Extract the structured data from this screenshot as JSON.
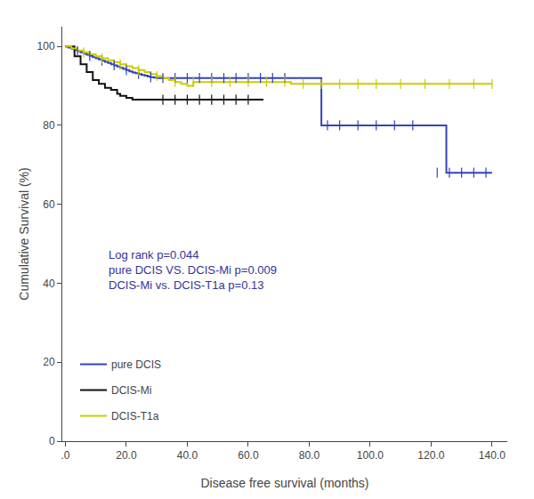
{
  "chart_data": {
    "type": "line",
    "line_style": "step",
    "title": "",
    "xlabel": "Disease free survival (months)",
    "ylabel": "Cumulative Survival (%)",
    "xlim": [
      -1,
      145
    ],
    "ylim": [
      0,
      105
    ],
    "xticks": [
      {
        "value": 0,
        "label": ".0"
      },
      {
        "value": 20,
        "label": "20.0"
      },
      {
        "value": 40,
        "label": "40.0"
      },
      {
        "value": 60,
        "label": "60.0"
      },
      {
        "value": 80,
        "label": "80.0"
      },
      {
        "value": 100,
        "label": "100.0"
      },
      {
        "value": 120,
        "label": "120.0"
      },
      {
        "value": 140,
        "label": "140.0"
      }
    ],
    "yticks": [
      0,
      20,
      40,
      60,
      80,
      100
    ],
    "grid": false,
    "legend": "lower left",
    "annotations": [
      {
        "text": "Log rank p=0.044\npure DCIS VS. DCIS-Mi p=0.009\nDCIS-Mi vs. DCIS-T1a p=0.13",
        "color": "#333399"
      }
    ],
    "series": [
      {
        "name": "pure DCIS",
        "color": "#3344bb",
        "marker": "line-ns",
        "x": [
          0,
          1,
          2,
          3,
          4,
          5,
          6,
          7,
          8,
          9,
          10,
          11,
          12,
          13,
          14,
          15,
          16,
          17,
          18,
          19,
          20,
          21,
          22,
          23,
          24,
          25,
          26,
          27,
          28,
          29,
          30,
          31,
          32,
          33,
          34,
          35,
          36,
          37,
          38,
          39,
          40,
          42,
          44,
          46,
          48,
          50,
          52,
          54,
          56,
          58,
          60,
          62,
          64,
          66,
          68,
          70,
          72,
          84,
          120,
          125,
          140
        ],
        "values": [
          100,
          99.7,
          99.4,
          99.1,
          98.8,
          98.5,
          98.2,
          97.9,
          97.6,
          97.3,
          97.0,
          96.7,
          96.4,
          96.1,
          95.8,
          95.5,
          95.2,
          94.9,
          94.6,
          94.3,
          94.0,
          93.7,
          93.4,
          93.2,
          93.0,
          92.8,
          92.6,
          92.4,
          92.2,
          92.1,
          92.0,
          92.0,
          92.0,
          92.0,
          92.0,
          92.0,
          92.0,
          92.0,
          92.0,
          92.0,
          92.0,
          92.0,
          92.0,
          92.0,
          92.0,
          92.0,
          92.0,
          92.0,
          92.0,
          92.0,
          92.0,
          92.0,
          92.0,
          92.0,
          92.0,
          92.0,
          92.0,
          80.0,
          80.0,
          68.0,
          68.0
        ],
        "censor_x": [
          4,
          8,
          12,
          16,
          20,
          24,
          28,
          32,
          36,
          40,
          44,
          48,
          52,
          56,
          60,
          64,
          68,
          72,
          86,
          90,
          96,
          102,
          108,
          114,
          122,
          126,
          130,
          134,
          138
        ],
        "censor_y": [
          98.8,
          97.6,
          96.4,
          95.2,
          94.0,
          93.0,
          92.2,
          92.0,
          92.0,
          92.0,
          92.0,
          92.0,
          92.0,
          92.0,
          92.0,
          92.0,
          92.0,
          92.0,
          80.0,
          80.0,
          80.0,
          80.0,
          80.0,
          80.0,
          68.0,
          68.0,
          68.0,
          68.0,
          68.0
        ]
      },
      {
        "name": "DCIS-Mi",
        "color": "#111111",
        "marker": "line-ns",
        "x": [
          0,
          3,
          5,
          7,
          9,
          11,
          13,
          15,
          17,
          18,
          20,
          22,
          24,
          26,
          28,
          30,
          65
        ],
        "values": [
          100,
          97.5,
          95.5,
          93.5,
          91.5,
          90.5,
          89.5,
          89.0,
          88.0,
          87.5,
          87.0,
          86.5,
          86.5,
          86.5,
          86.5,
          86.5,
          86.5
        ],
        "censor_x": [
          32,
          36,
          40,
          44,
          48,
          52,
          56,
          60
        ],
        "censor_y": [
          86.5,
          86.5,
          86.5,
          86.5,
          86.5,
          86.5,
          86.5,
          86.5
        ]
      },
      {
        "name": "DCIS-T1a",
        "color": "#cccc00",
        "marker": "line-ns",
        "x": [
          0,
          2,
          4,
          6,
          8,
          10,
          12,
          14,
          16,
          18,
          20,
          22,
          24,
          26,
          28,
          30,
          32,
          34,
          36,
          38,
          40,
          42,
          44,
          46,
          48,
          50,
          52,
          54,
          56,
          58,
          60,
          62,
          64,
          66,
          68,
          70,
          72,
          74,
          75,
          140
        ],
        "values": [
          100,
          99.5,
          99.0,
          98.5,
          98.0,
          97.5,
          97.0,
          96.5,
          96.0,
          95.5,
          95.0,
          94.5,
          94.0,
          93.5,
          93.0,
          92.5,
          92.0,
          91.5,
          91.0,
          90.5,
          90.0,
          91.0,
          91.0,
          91.0,
          91.0,
          91.0,
          91.0,
          91.0,
          91.0,
          91.0,
          91.0,
          91.0,
          91.0,
          91.0,
          91.0,
          91.0,
          91.0,
          90.5,
          90.5,
          90.5
        ],
        "censor_x": [
          6,
          12,
          18,
          24,
          30,
          36,
          42,
          48,
          54,
          60,
          66,
          72,
          78,
          84,
          90,
          96,
          102,
          110,
          118,
          126,
          134,
          140
        ],
        "censor_y": [
          98.5,
          97.0,
          95.5,
          94.0,
          92.5,
          91.0,
          91.0,
          91.0,
          91.0,
          91.0,
          91.0,
          91.0,
          90.5,
          90.5,
          90.5,
          90.5,
          90.5,
          90.5,
          90.5,
          90.5,
          90.5,
          90.5
        ]
      }
    ]
  }
}
